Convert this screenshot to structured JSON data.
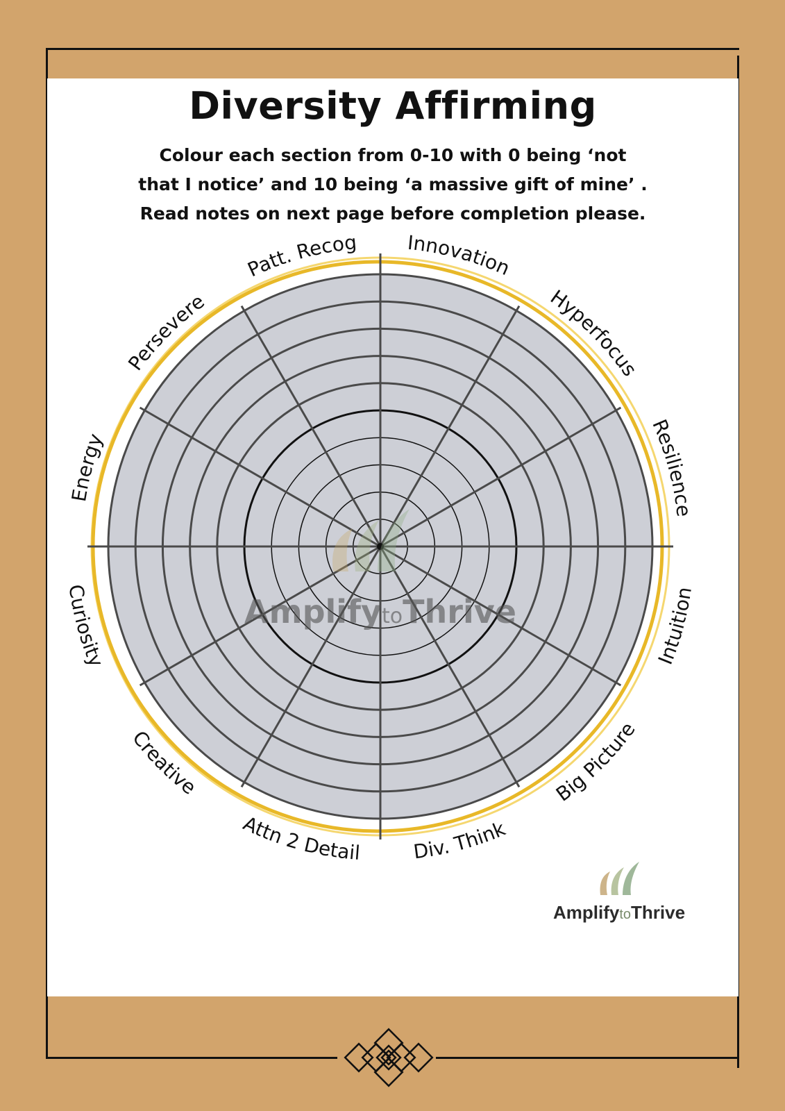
{
  "title": "Diversity Affirming",
  "instructions": [
    "Colour each section from 0-10 with 0 being ‘not",
    "that I notice’ and 10 being ‘a massive gift of mine’ .",
    "Read notes on next page before completion please."
  ],
  "wheel": {
    "segments": [
      "Innovation",
      "Hyperfocus",
      "Resilience",
      "Intuition",
      "Big Picture",
      "Div. Think",
      "Attn 2 Detail",
      "Creative",
      "Curiosity",
      "Energy",
      "Persevere",
      "Patt. Recog"
    ],
    "scale_min": 0,
    "scale_max": 10,
    "colors": {
      "fill": "#CDCFD6",
      "lines": "#4A4A4A",
      "ring_gold": "#E8B828",
      "ring_light": "#F5D770"
    }
  },
  "watermark": {
    "word1": "Amplify",
    "word2": "to",
    "word3": "Thrive"
  },
  "brand": {
    "word1": "Amplify",
    "word2": "to",
    "word3": "Thrive"
  },
  "colors": {
    "background": "#D2A46C",
    "page": "#FFFFFF"
  }
}
